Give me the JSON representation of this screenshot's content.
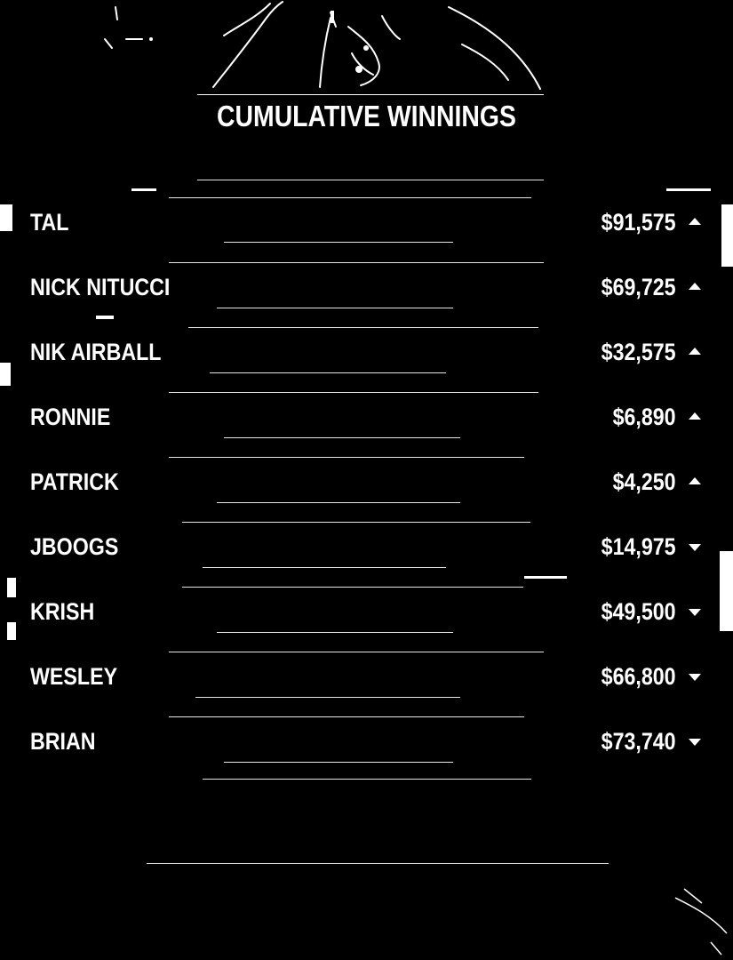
{
  "board": {
    "title": "CUMULATIVE WINNINGS",
    "players": [
      {
        "name": "TAL",
        "amount": "$91,575",
        "trend": "up"
      },
      {
        "name": "NICK NITUCCI",
        "amount": "$69,725",
        "trend": "up"
      },
      {
        "name": "NIK AIRBALL",
        "amount": "$32,575",
        "trend": "up"
      },
      {
        "name": "RONNIE",
        "amount": "$6,890",
        "trend": "up"
      },
      {
        "name": "PATRICK",
        "amount": "$4,250",
        "trend": "up"
      },
      {
        "name": "JBOOGS",
        "amount": "$14,975",
        "trend": "down"
      },
      {
        "name": "KRISH",
        "amount": "$49,500",
        "trend": "down"
      },
      {
        "name": "WESLEY",
        "amount": "$66,800",
        "trend": "down"
      },
      {
        "name": "BRIAN",
        "amount": "$73,740",
        "trend": "down"
      }
    ]
  },
  "icons": {
    "up": "triangle-up-icon",
    "down": "triangle-down-icon"
  },
  "colors": {
    "background": "#000000",
    "text": "#ffffff"
  }
}
